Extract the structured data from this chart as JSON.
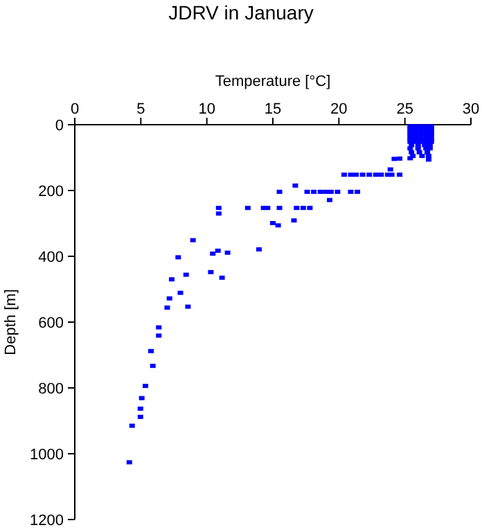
{
  "chart_data": {
    "type": "scatter",
    "title": "JDRV in January",
    "xlabel": "Temperature [°C]",
    "ylabel": "Depth [m]",
    "xlim": [
      0,
      30
    ],
    "xticks": [
      0,
      5,
      10,
      15,
      20,
      25,
      30
    ],
    "ylim": [
      1200,
      0
    ],
    "yticks": [
      0,
      200,
      400,
      600,
      800,
      1000,
      1200
    ],
    "marker": "square",
    "series": [
      {
        "color": "#0000ff",
        "x": [
          25.4,
          25.8,
          26.2,
          26.6,
          27.0,
          25.4,
          25.8,
          26.2,
          26.6,
          27.0,
          25.4,
          25.8,
          26.2,
          26.6,
          27.0,
          25.4,
          25.8,
          26.2,
          26.6,
          27.0,
          25.4,
          25.8,
          26.2,
          26.6,
          27.0,
          25.4,
          25.8,
          26.2,
          26.6,
          27.0,
          25.4,
          25.8,
          26.2,
          26.6,
          27.0,
          25.5,
          26.0,
          26.5,
          26.9,
          25.4,
          26.0,
          26.6,
          26.9,
          25.5,
          26.1,
          26.7,
          25.6,
          26.3,
          26.8,
          25.4,
          24.2,
          24.6,
          26.8,
          23.9,
          20.4,
          20.9,
          21.3,
          21.8,
          22.3,
          22.8,
          23.2,
          23.7,
          24.0,
          24.6,
          15.5,
          17.6,
          18.1,
          18.6,
          19.0,
          19.4,
          19.9,
          20.9,
          21.4,
          16.7,
          19.3,
          10.9,
          13.1,
          14.3,
          14.6,
          15.5,
          16.8,
          17.3,
          17.8,
          10.9,
          16.6,
          15.0,
          15.4,
          8.95,
          13.95,
          10.84,
          10.45,
          11.57,
          7.83,
          7.34,
          8.43,
          8.0,
          7.17,
          7.0,
          8.57,
          10.3,
          11.15,
          6.36,
          6.36,
          5.77,
          5.91,
          5.35,
          5.07,
          4.97,
          4.97,
          4.34,
          4.13
        ],
        "values": [
          5,
          5,
          5,
          5,
          5,
          12,
          12,
          12,
          12,
          12,
          20,
          20,
          20,
          20,
          20,
          28,
          28,
          28,
          28,
          28,
          36,
          36,
          36,
          36,
          36,
          44,
          44,
          44,
          44,
          44,
          52,
          52,
          52,
          52,
          52,
          62,
          62,
          62,
          62,
          72,
          72,
          72,
          72,
          84,
          84,
          84,
          95,
          95,
          95,
          102,
          104,
          103,
          106,
          136,
          152,
          152,
          152,
          152,
          152,
          152,
          152,
          152,
          152,
          152,
          204,
          204,
          204,
          204,
          204,
          204,
          204,
          204,
          204,
          185,
          229,
          253,
          253,
          253,
          253,
          253,
          253,
          253,
          253,
          270,
          291,
          299,
          306,
          351,
          379,
          383,
          392,
          389,
          403,
          470,
          456,
          511,
          528,
          556,
          553,
          448,
          465,
          616,
          641,
          688,
          733,
          794,
          831,
          863,
          888,
          915,
          1026
        ]
      }
    ]
  }
}
